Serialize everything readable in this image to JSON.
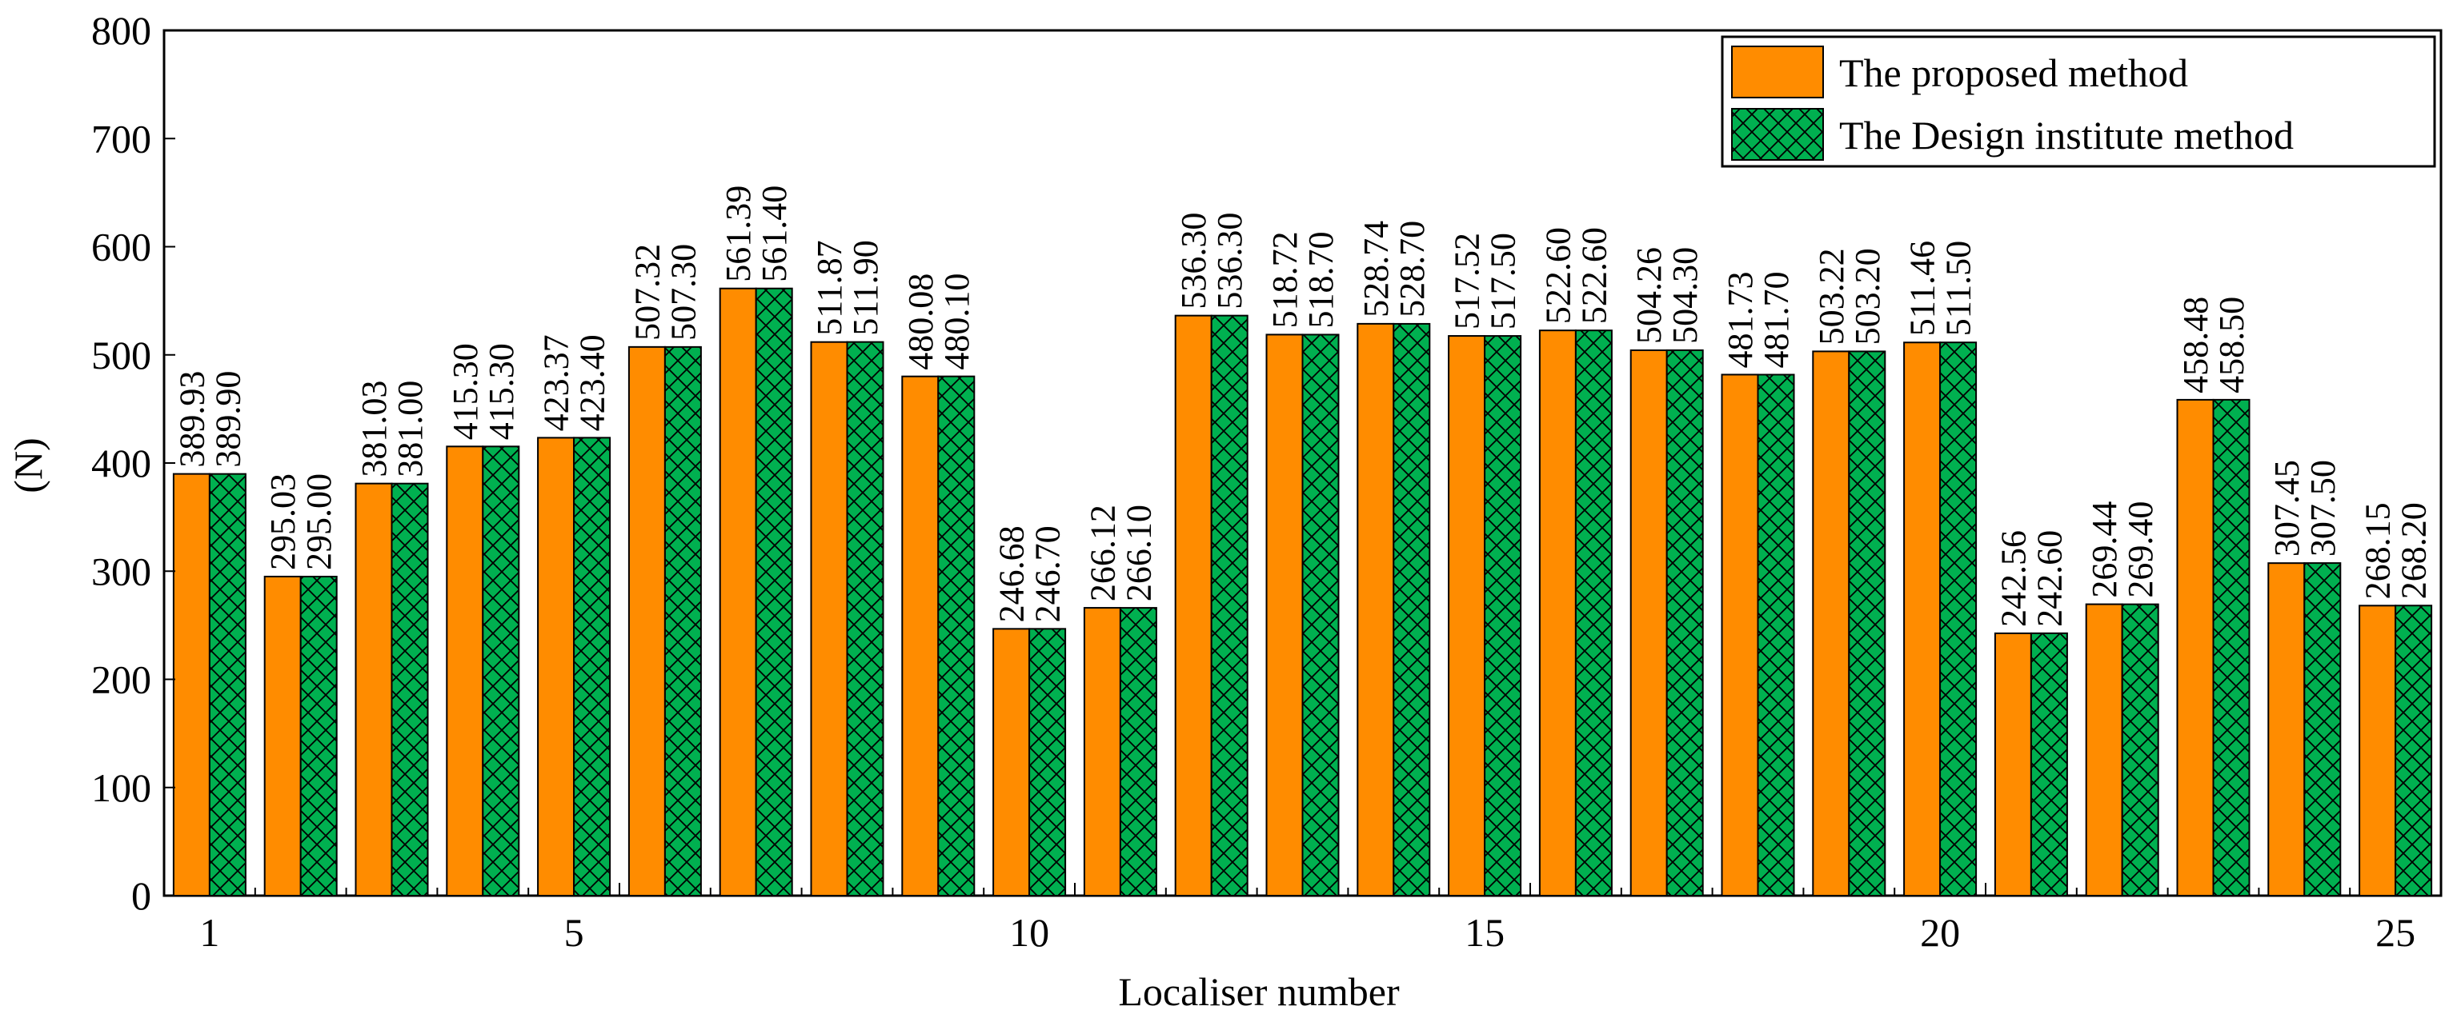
{
  "chart_data": {
    "type": "bar",
    "title": "",
    "xlabel": "Localiser number",
    "ylabel": "(N)",
    "ylim": [
      0,
      800
    ],
    "yticks": [
      0,
      100,
      200,
      300,
      400,
      500,
      600,
      700,
      800
    ],
    "xtick_labels": [
      "1",
      "5",
      "10",
      "15",
      "20",
      "25"
    ],
    "categories": [
      "1",
      "2",
      "3",
      "4",
      "5",
      "6",
      "7",
      "8",
      "9",
      "10",
      "11",
      "12",
      "13",
      "14",
      "15",
      "16",
      "17",
      "18",
      "19",
      "20",
      "21",
      "22",
      "23",
      "24",
      "25"
    ],
    "grid": false,
    "legend_position": "top-right",
    "series": [
      {
        "name": "The proposed method",
        "color": "#ff8c00",
        "pattern": "solid",
        "values": [
          389.93,
          295.03,
          381.03,
          415.3,
          423.37,
          507.32,
          561.39,
          511.87,
          480.08,
          246.68,
          266.12,
          536.3,
          518.72,
          528.74,
          517.52,
          522.6,
          504.26,
          481.73,
          503.22,
          511.46,
          242.56,
          269.44,
          458.48,
          307.45,
          268.15
        ],
        "labels": [
          "389.93",
          "295.03",
          "381.03",
          "415.30",
          "423.37",
          "507.32",
          "561.39",
          "511.87",
          "480.08",
          "246.68",
          "266.12",
          "536.30",
          "518.72",
          "528.74",
          "517.52",
          "522.60",
          "504.26",
          "481.73",
          "503.22",
          "511.46",
          "242.56",
          "269.44",
          "458.48",
          "307.45",
          "268.15"
        ]
      },
      {
        "name": "The Design institute method",
        "color": "#00b050",
        "pattern": "crosshatch",
        "values": [
          389.9,
          295.0,
          381.0,
          415.3,
          423.4,
          507.3,
          561.4,
          511.9,
          480.1,
          246.7,
          266.1,
          536.3,
          518.7,
          528.7,
          517.5,
          522.6,
          504.3,
          481.7,
          503.2,
          511.5,
          242.6,
          269.4,
          458.5,
          307.5,
          268.2
        ],
        "labels": [
          "389.90",
          "295.00",
          "381.00",
          "415.30",
          "423.40",
          "507.30",
          "561.40",
          "511.90",
          "480.10",
          "246.70",
          "266.10",
          "536.30",
          "518.70",
          "528.70",
          "517.50",
          "522.60",
          "504.30",
          "481.70",
          "503.20",
          "511.50",
          "242.60",
          "269.40",
          "458.50",
          "307.50",
          "268.20"
        ]
      }
    ]
  }
}
